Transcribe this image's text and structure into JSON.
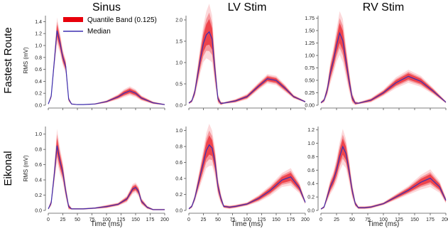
{
  "chart_data": [
    {
      "type": "line",
      "column_title": "Sinus",
      "row_title": "Fastest Route",
      "ylabel": "RMS (mV)",
      "xlabel": "",
      "ylim": [
        0,
        1.5
      ],
      "yticks": [
        0.0,
        0.2,
        0.4,
        0.6,
        0.8,
        1.0,
        1.2,
        1.4
      ],
      "ytick_labels": [
        "0.0",
        "0.2",
        "0.4",
        "0.6",
        "0.8",
        "1.0",
        "1.2",
        "1.4"
      ],
      "xlim": [
        0,
        200
      ],
      "xticks": [
        0,
        25,
        50,
        75,
        100,
        125,
        150,
        175,
        200
      ],
      "x": [
        0,
        5,
        10,
        15,
        20,
        25,
        30,
        35,
        40,
        50,
        60,
        80,
        100,
        120,
        130,
        140,
        150,
        160,
        180,
        200
      ],
      "median": [
        0.02,
        0.15,
        0.7,
        1.25,
        1.05,
        0.8,
        0.65,
        0.1,
        0.02,
        0.01,
        0.01,
        0.02,
        0.06,
        0.14,
        0.2,
        0.24,
        0.2,
        0.12,
        0.04,
        0.01
      ],
      "band_halfwidth": [
        0.005,
        0.02,
        0.05,
        0.1,
        0.08,
        0.06,
        0.05,
        0.02,
        0.005,
        0.003,
        0.003,
        0.005,
        0.01,
        0.02,
        0.03,
        0.035,
        0.03,
        0.02,
        0.01,
        0.005
      ]
    },
    {
      "type": "line",
      "column_title": "LV Stim",
      "row_title": "Fastest Route",
      "ylabel": "",
      "xlabel": "",
      "ylim": [
        0,
        2.1
      ],
      "yticks": [
        0.0,
        0.5,
        1.0,
        1.5,
        2.0
      ],
      "ytick_labels": [
        "0.0",
        "0.5",
        "1.0",
        "1.5",
        "2.0"
      ],
      "xlim": [
        0,
        200
      ],
      "xticks": [
        0,
        25,
        50,
        75,
        100,
        125,
        150,
        175,
        200
      ],
      "x": [
        0,
        5,
        10,
        15,
        20,
        25,
        30,
        35,
        40,
        45,
        50,
        55,
        60,
        80,
        100,
        120,
        135,
        150,
        165,
        180,
        200
      ],
      "median": [
        0.05,
        0.1,
        0.3,
        0.7,
        1.1,
        1.45,
        1.65,
        1.72,
        1.55,
        0.8,
        0.15,
        0.04,
        0.05,
        0.1,
        0.2,
        0.45,
        0.62,
        0.58,
        0.4,
        0.2,
        0.08
      ],
      "band_halfwidth": [
        0.01,
        0.02,
        0.05,
        0.1,
        0.15,
        0.2,
        0.25,
        0.3,
        0.25,
        0.15,
        0.05,
        0.02,
        0.01,
        0.02,
        0.03,
        0.04,
        0.05,
        0.05,
        0.04,
        0.02,
        0.01
      ]
    },
    {
      "type": "line",
      "column_title": "RV Stim",
      "row_title": "Fastest Route",
      "ylabel": "",
      "xlabel": "",
      "ylim": [
        0,
        1.8
      ],
      "yticks": [
        0.0,
        0.25,
        0.5,
        0.75,
        1.0,
        1.25,
        1.5,
        1.75
      ],
      "ytick_labels": [
        "0.00",
        "0.25",
        "0.50",
        "0.75",
        "1.00",
        "1.25",
        "1.50",
        "1.75"
      ],
      "xlim": [
        0,
        200
      ],
      "xticks": [
        0,
        25,
        50,
        75,
        100,
        125,
        150,
        175,
        200
      ],
      "x": [
        0,
        5,
        10,
        15,
        20,
        25,
        30,
        35,
        40,
        45,
        50,
        55,
        60,
        80,
        100,
        120,
        140,
        160,
        180,
        200
      ],
      "median": [
        0.05,
        0.1,
        0.3,
        0.65,
        0.9,
        1.2,
        1.45,
        1.3,
        0.9,
        0.5,
        0.15,
        0.04,
        0.04,
        0.1,
        0.25,
        0.45,
        0.58,
        0.48,
        0.28,
        0.06
      ],
      "band_halfwidth": [
        0.01,
        0.02,
        0.05,
        0.1,
        0.12,
        0.15,
        0.2,
        0.2,
        0.15,
        0.1,
        0.05,
        0.02,
        0.01,
        0.02,
        0.03,
        0.05,
        0.06,
        0.05,
        0.03,
        0.01
      ]
    },
    {
      "type": "line",
      "column_title": "",
      "row_title": "Eikonal",
      "ylabel": "RMS (mV)",
      "xlabel": "Time (ms)",
      "ylim": [
        0,
        1.1
      ],
      "yticks": [
        0.0,
        0.2,
        0.4,
        0.6,
        0.8,
        1.0
      ],
      "ytick_labels": [
        "0.0",
        "0.2",
        "0.4",
        "0.6",
        "0.8",
        "1.0"
      ],
      "xlim": [
        0,
        200
      ],
      "xticks": [
        0,
        25,
        50,
        75,
        100,
        125,
        150,
        175,
        200
      ],
      "x": [
        0,
        5,
        10,
        15,
        20,
        25,
        30,
        35,
        40,
        60,
        80,
        100,
        120,
        135,
        145,
        150,
        155,
        160,
        170,
        180,
        200
      ],
      "median": [
        0.02,
        0.1,
        0.45,
        0.85,
        0.65,
        0.5,
        0.25,
        0.05,
        0.02,
        0.02,
        0.03,
        0.05,
        0.08,
        0.15,
        0.28,
        0.3,
        0.25,
        0.12,
        0.04,
        0.01,
        0.01
      ],
      "band_halfwidth": [
        0.005,
        0.02,
        0.05,
        0.1,
        0.08,
        0.06,
        0.04,
        0.02,
        0.005,
        0.005,
        0.005,
        0.01,
        0.01,
        0.02,
        0.03,
        0.03,
        0.03,
        0.02,
        0.01,
        0.005,
        0.005
      ]
    },
    {
      "type": "line",
      "column_title": "",
      "row_title": "Eikonal",
      "ylabel": "",
      "xlabel": "Time (ms)",
      "ylim": [
        0,
        1.05
      ],
      "yticks": [
        0.0,
        0.2,
        0.4,
        0.6,
        0.8,
        1.0
      ],
      "ytick_labels": [
        "0.0",
        "0.2",
        "0.4",
        "0.6",
        "0.8",
        "1.0"
      ],
      "xlim": [
        0,
        200
      ],
      "xticks": [
        0,
        25,
        50,
        75,
        100,
        125,
        150,
        175,
        200
      ],
      "x": [
        0,
        5,
        10,
        15,
        20,
        25,
        30,
        35,
        40,
        45,
        50,
        55,
        60,
        70,
        80,
        100,
        120,
        140,
        160,
        175,
        190,
        200
      ],
      "median": [
        0.02,
        0.05,
        0.15,
        0.3,
        0.45,
        0.6,
        0.75,
        0.82,
        0.78,
        0.6,
        0.3,
        0.15,
        0.05,
        0.04,
        0.05,
        0.08,
        0.15,
        0.25,
        0.38,
        0.42,
        0.28,
        0.1
      ],
      "band_halfwidth": [
        0.005,
        0.01,
        0.02,
        0.04,
        0.06,
        0.08,
        0.1,
        0.12,
        0.1,
        0.08,
        0.05,
        0.03,
        0.01,
        0.01,
        0.01,
        0.01,
        0.02,
        0.03,
        0.04,
        0.05,
        0.03,
        0.01
      ]
    },
    {
      "type": "line",
      "column_title": "",
      "row_title": "Eikonal",
      "ylabel": "",
      "xlabel": "Time (ms)",
      "ylim": [
        0,
        1.25
      ],
      "yticks": [
        0.0,
        0.2,
        0.4,
        0.6,
        0.8,
        1.0,
        1.2
      ],
      "ytick_labels": [
        "0.0",
        "0.2",
        "0.4",
        "0.6",
        "0.8",
        "1.0",
        "1.2"
      ],
      "xlim": [
        0,
        200
      ],
      "xticks": [
        0,
        25,
        50,
        75,
        100,
        125,
        150,
        175,
        200
      ],
      "x": [
        0,
        5,
        10,
        15,
        20,
        25,
        30,
        35,
        40,
        45,
        50,
        55,
        60,
        70,
        80,
        100,
        120,
        140,
        160,
        175,
        190,
        200
      ],
      "median": [
        0.02,
        0.05,
        0.2,
        0.35,
        0.45,
        0.6,
        0.8,
        0.95,
        0.85,
        0.6,
        0.3,
        0.1,
        0.04,
        0.04,
        0.05,
        0.1,
        0.2,
        0.3,
        0.42,
        0.48,
        0.35,
        0.15
      ],
      "band_halfwidth": [
        0.005,
        0.01,
        0.03,
        0.05,
        0.06,
        0.08,
        0.1,
        0.12,
        0.1,
        0.08,
        0.05,
        0.02,
        0.01,
        0.01,
        0.01,
        0.01,
        0.02,
        0.03,
        0.05,
        0.06,
        0.04,
        0.02
      ]
    }
  ],
  "legend": {
    "band_label": "Quantile Band (0.125)",
    "median_label": "Median",
    "band_color": "#e8000b",
    "median_color": "#3b2fb0"
  },
  "colors": {
    "band": "#e8000b",
    "median": "#3b2fb0",
    "axis": "#555555"
  }
}
